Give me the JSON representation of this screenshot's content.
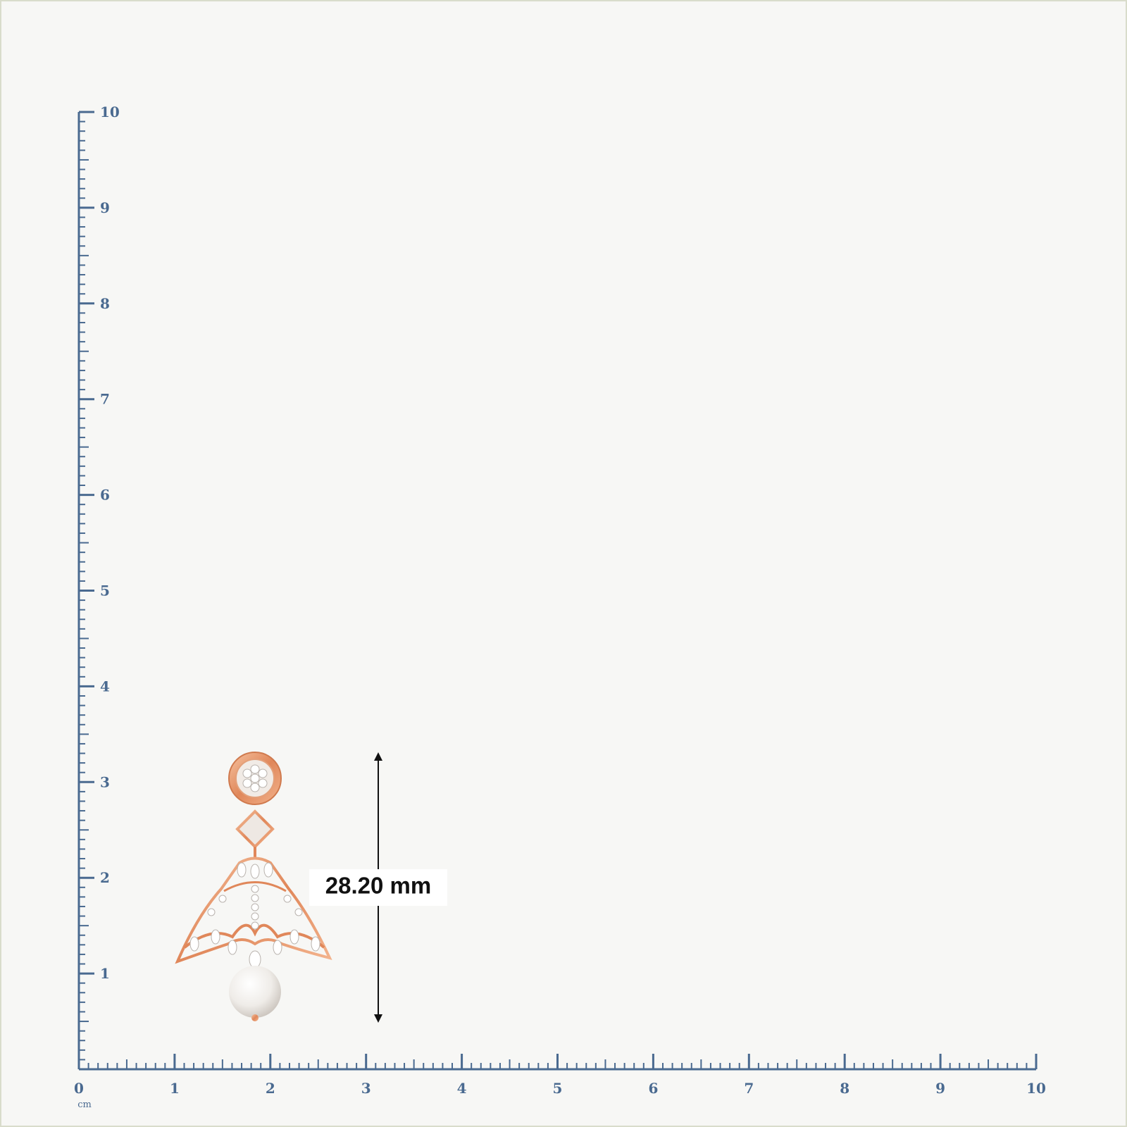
{
  "rulers": {
    "x": {
      "ticks": [
        0,
        1,
        2,
        3,
        4,
        5,
        6,
        7,
        8,
        9,
        10
      ]
    },
    "y": {
      "ticks": [
        0,
        1,
        2,
        3,
        4,
        5,
        6,
        7,
        8,
        9,
        10
      ]
    },
    "unit": "cm"
  },
  "measurement": {
    "label": "28.20 mm"
  }
}
